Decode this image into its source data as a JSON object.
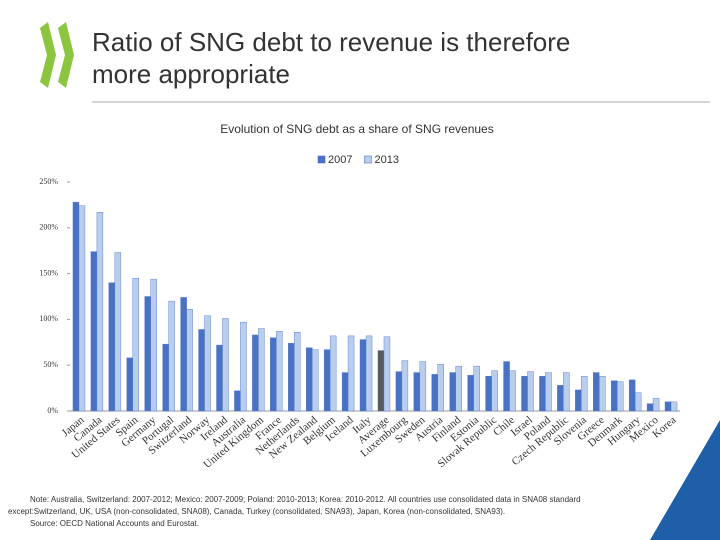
{
  "header": {
    "title_lines": [
      "Ratio of SNG debt to revenue is therefore",
      "more appropriate"
    ]
  },
  "chart_data": {
    "type": "bar",
    "title": "Evolution of SNG debt as a share of SNG revenues",
    "categories": [
      "Japan",
      "Canada",
      "United States",
      "Spain",
      "Germany",
      "Portugal",
      "Switzerland",
      "Norway",
      "Ireland",
      "Australia",
      "United Kingdom",
      "France",
      "Netherlands",
      "New Zealand",
      "Belgium",
      "Iceland",
      "Italy",
      "Average",
      "Luxembourg",
      "Sweden",
      "Austria",
      "Finland",
      "Estonia",
      "Slovak Republic",
      "Chile",
      "Israel",
      "Poland",
      "Czech Republic",
      "Slovenia",
      "Greece",
      "Denmark",
      "Hungary",
      "Mexico",
      "Korea"
    ],
    "series": [
      {
        "name": "2007",
        "color": "#4a72c4",
        "colors": [
          "#4a72c4",
          "#4a72c4",
          "#4a72c4",
          "#4a72c4",
          "#4a72c4",
          "#4a72c4",
          "#4a72c4",
          "#4a72c4",
          "#4a72c4",
          "#4a72c4",
          "#4a72c4",
          "#4a72c4",
          "#4a72c4",
          "#4a72c4",
          "#4a72c4",
          "#4a72c4",
          "#4a72c4",
          "#595959",
          "#4a72c4",
          "#4a72c4",
          "#4a72c4",
          "#4a72c4",
          "#4a72c4",
          "#4a72c4",
          "#4a72c4",
          "#4a72c4",
          "#4a72c4",
          "#4a72c4",
          "#4a72c4",
          "#4a72c4",
          "#4a72c4",
          "#4a72c4",
          "#4a72c4",
          "#4a72c4"
        ],
        "values": [
          228,
          174,
          140,
          58,
          125,
          73,
          124,
          89,
          72,
          22,
          83,
          80,
          74,
          69,
          67,
          42,
          78,
          66,
          43,
          42,
          40,
          42,
          39,
          38,
          54,
          38,
          38,
          28,
          23,
          42,
          33,
          34,
          8,
          10
        ]
      },
      {
        "name": "2013",
        "color": "#b9cdec",
        "values": [
          224,
          217,
          173,
          145,
          144,
          120,
          111,
          104,
          101,
          97,
          90,
          87,
          86,
          67,
          82,
          82,
          82,
          81,
          55,
          54,
          51,
          49,
          49,
          44,
          44,
          43,
          42,
          42,
          38,
          38,
          32,
          20,
          14,
          10
        ]
      }
    ],
    "ylim": [
      0,
      250
    ],
    "yticks": [
      {
        "value": 0,
        "label": "0%"
      },
      {
        "value": 50,
        "label": "50%"
      },
      {
        "value": 100,
        "label": "100%"
      },
      {
        "value": 150,
        "label": "150%"
      },
      {
        "value": 200,
        "label": "200%"
      },
      {
        "value": 250,
        "label": "250%"
      }
    ],
    "legend": "top",
    "notes": [
      "Note: Australia, Switzerland: 2007-2012; Mexico: 2007-2009; Poland: 2010-2013; Korea: 2010-2012. All countries use consolidated data in SNA08 standard",
      "except:Switzerland, UK, USA (non-consolidated, SNA08), Canada, Turkey (consolidated, SNA93), Japan, Korea (non-consolidated, SNA93).",
      "Source: OECD National Accounts and Eurostat."
    ]
  }
}
